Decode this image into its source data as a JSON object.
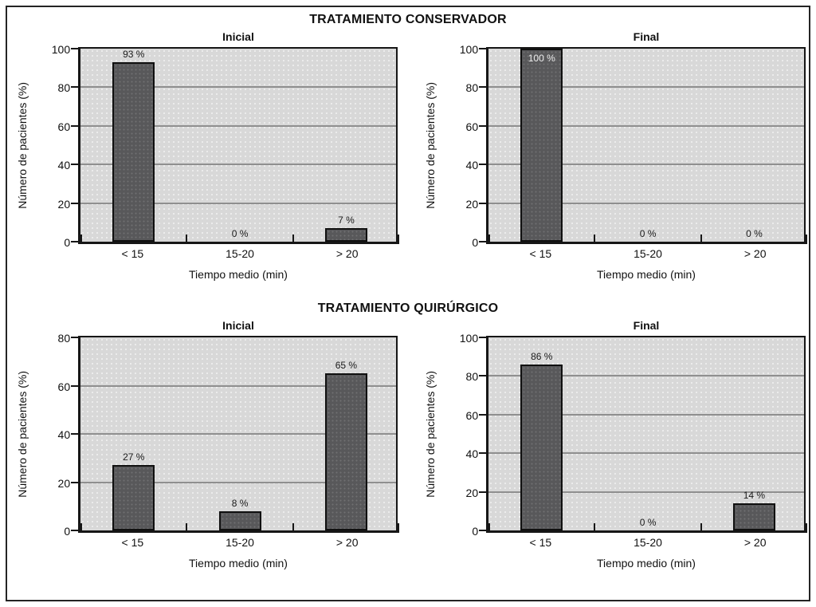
{
  "figure": {
    "background": "#ffffff",
    "frame_border": "#242424"
  },
  "groups": [
    {
      "title": "TRATAMIENTO CONSERVADOR",
      "chart_indexes": [
        0,
        1
      ]
    },
    {
      "title": "TRATAMIENTO QUIRÚRGICO",
      "chart_indexes": [
        2,
        3
      ]
    }
  ],
  "chart_data": [
    {
      "type": "bar",
      "group": "TRATAMIENTO CONSERVADOR",
      "title": "Inicial",
      "categories": [
        "< 15",
        "15-20",
        "> 20"
      ],
      "values": [
        93,
        0,
        7
      ],
      "bar_labels": [
        "93 %",
        "0 %",
        "7 %"
      ],
      "label_positions": [
        "above",
        "above",
        "above"
      ],
      "xlabel": "Tiempo medio (min)",
      "ylabel": "Número de pacientes (%)",
      "ylim": [
        0,
        100
      ],
      "yticks": [
        0,
        20,
        40,
        60,
        80,
        100
      ],
      "grid": true,
      "legend": "none"
    },
    {
      "type": "bar",
      "group": "TRATAMIENTO CONSERVADOR",
      "title": "Final",
      "categories": [
        "< 15",
        "15-20",
        "> 20"
      ],
      "values": [
        100,
        0,
        0
      ],
      "bar_labels": [
        "100 %",
        "0 %",
        "0 %"
      ],
      "label_positions": [
        "inside",
        "above",
        "above"
      ],
      "xlabel": "Tiempo medio (min)",
      "ylabel": "Número de pacientes (%)",
      "ylim": [
        0,
        100
      ],
      "yticks": [
        0,
        20,
        40,
        60,
        80,
        100
      ],
      "grid": true,
      "legend": "none"
    },
    {
      "type": "bar",
      "group": "TRATAMIENTO QUIRÚRGICO",
      "title": "Inicial",
      "categories": [
        "< 15",
        "15-20",
        "> 20"
      ],
      "values": [
        27,
        8,
        65
      ],
      "bar_labels": [
        "27 %",
        "8 %",
        "65 %"
      ],
      "label_positions": [
        "above",
        "above",
        "above"
      ],
      "xlabel": "Tiempo medio (min)",
      "ylabel": "Número de pacientes (%)",
      "ylim": [
        0,
        80
      ],
      "yticks": [
        0,
        20,
        40,
        60,
        80
      ],
      "grid": true,
      "legend": "none"
    },
    {
      "type": "bar",
      "group": "TRATAMIENTO QUIRÚRGICO",
      "title": "Final",
      "categories": [
        "< 15",
        "15-20",
        "> 20"
      ],
      "values": [
        86,
        0,
        14
      ],
      "bar_labels": [
        "86 %",
        "0 %",
        "14 %"
      ],
      "label_positions": [
        "above",
        "above",
        "above"
      ],
      "xlabel": "Tiempo medio (min)",
      "ylabel": "Número de pacientes (%)",
      "ylim": [
        0,
        100
      ],
      "yticks": [
        0,
        20,
        40,
        60,
        80,
        100
      ],
      "grid": true,
      "legend": "none"
    }
  ],
  "colors": {
    "bar_fill": "#58585a",
    "bar_border": "#101010",
    "plot_background": "#d8d8d8",
    "gridline": "#8f8f8f",
    "axis": "#161616",
    "text": "#111111",
    "label_inside_bar": "#ececec"
  }
}
